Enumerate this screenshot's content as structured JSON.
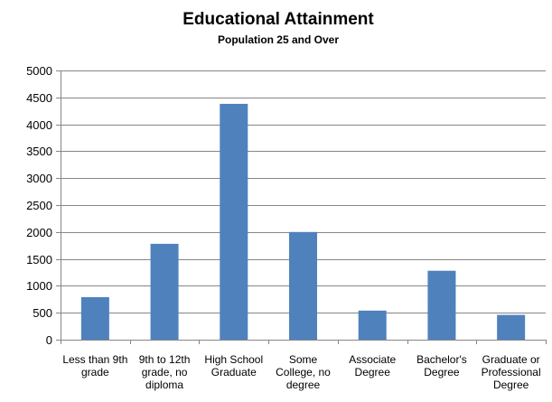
{
  "chart_data": {
    "type": "bar",
    "title": "Educational Attainment",
    "subtitle": "Population 25 and Over",
    "xlabel": "",
    "ylabel": "",
    "ylim": [
      0,
      5000
    ],
    "yticks": [
      0,
      500,
      1000,
      1500,
      2000,
      2500,
      3000,
      3500,
      4000,
      4500,
      5000
    ],
    "grid": true,
    "legend": "none",
    "bar_color": "#4f81bd",
    "categories": [
      [
        "Less than 9th",
        "grade"
      ],
      [
        "9th to 12th",
        "grade, no",
        "diploma"
      ],
      [
        "High School",
        "Graduate"
      ],
      [
        "Some",
        "College, no",
        "degree"
      ],
      [
        "Associate",
        "Degree"
      ],
      [
        "Bachelor's",
        "Degree"
      ],
      [
        "Graduate or",
        "Professional",
        "Degree"
      ]
    ],
    "values": [
      790,
      1780,
      4380,
      2000,
      540,
      1280,
      460
    ]
  }
}
